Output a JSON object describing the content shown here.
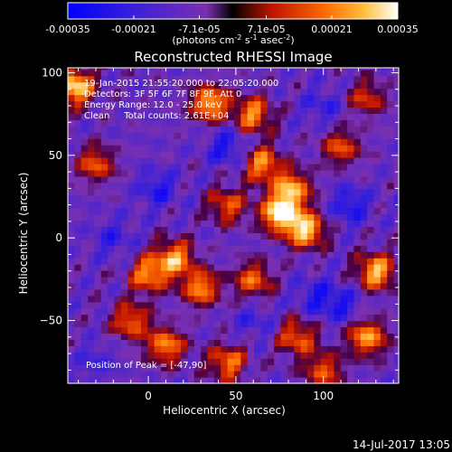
{
  "chart_data": {
    "type": "heatmap",
    "title": "Reconstructed RHESSI Image",
    "xlabel": "Heliocentric X (arcsec)",
    "ylabel": "Heliocentric Y (arcsec)",
    "xlim": [
      -46,
      143
    ],
    "ylim": [
      -88,
      103
    ],
    "xticks": [
      0,
      50,
      100
    ],
    "yticks": [
      -50,
      0,
      50,
      100
    ],
    "colorbar": {
      "ticks": [
        "-0.00035",
        "-0.00021",
        "-7.1e-05",
        "7.1e-05",
        "0.00021",
        "0.00035"
      ],
      "range": [
        -0.00035,
        0.00035
      ],
      "units_prefix": "(photons cm",
      "units_exp1": "-2",
      "units_mid": " s",
      "units_exp2": "-1",
      "units_mid2": " asec",
      "units_exp3": "-2",
      "units_suffix": ")"
    },
    "annotations": [
      "19-Jan-2015 21:55:20.000 to 22:05:20.000",
      "Detectors: 3F 5F 6F 7F 8F 9F, Att 0",
      "Energy Range: 12.0 - 25.0 keV",
      "Clean     Total counts: 2.61E+04"
    ],
    "peak_label": "Position of Peak = [-47,90]",
    "timestamp": "14-Jul-2017 13:05",
    "hot_spots": [
      {
        "x": -42,
        "y": 92,
        "v": 0.00034
      },
      {
        "x": 75,
        "y": 15,
        "v": 0.00034
      },
      {
        "x": 90,
        "y": 5,
        "v": 0.0003
      },
      {
        "x": 82,
        "y": 30,
        "v": 0.00025
      },
      {
        "x": 65,
        "y": 45,
        "v": 0.00022
      },
      {
        "x": 35,
        "y": 82,
        "v": 0.00027
      },
      {
        "x": 60,
        "y": 75,
        "v": 0.00022
      },
      {
        "x": 15,
        "y": -12,
        "v": 0.00025
      },
      {
        "x": 30,
        "y": -30,
        "v": 0.00022
      },
      {
        "x": 0,
        "y": -22,
        "v": 0.00022
      },
      {
        "x": 130,
        "y": -20,
        "v": 0.00028
      },
      {
        "x": 125,
        "y": -60,
        "v": 0.00025
      },
      {
        "x": 85,
        "y": -60,
        "v": 0.00018
      },
      {
        "x": 60,
        "y": -25,
        "v": 0.00018
      },
      {
        "x": 10,
        "y": -65,
        "v": 0.00022
      },
      {
        "x": 45,
        "y": -75,
        "v": 0.0002
      },
      {
        "x": -30,
        "y": 45,
        "v": 0.00016
      },
      {
        "x": 110,
        "y": 55,
        "v": 0.00015
      },
      {
        "x": 125,
        "y": 85,
        "v": 0.00012
      },
      {
        "x": -10,
        "y": -50,
        "v": 0.00018
      },
      {
        "x": 100,
        "y": -80,
        "v": 0.00016
      },
      {
        "x": 45,
        "y": 20,
        "v": 0.00016
      }
    ],
    "cold_spots": [
      {
        "x": 45,
        "y": 55,
        "v": -0.00018
      },
      {
        "x": 5,
        "y": 30,
        "v": -0.00016
      },
      {
        "x": 115,
        "y": 20,
        "v": -0.00018
      },
      {
        "x": 95,
        "y": -35,
        "v": -0.00014
      },
      {
        "x": 110,
        "y": -40,
        "v": -0.00016
      },
      {
        "x": -20,
        "y": 0,
        "v": -0.00012
      },
      {
        "x": 100,
        "y": 80,
        "v": -0.00012
      },
      {
        "x": -30,
        "y": -75,
        "v": -0.0001
      },
      {
        "x": 60,
        "y": -50,
        "v": -0.0001
      }
    ]
  }
}
